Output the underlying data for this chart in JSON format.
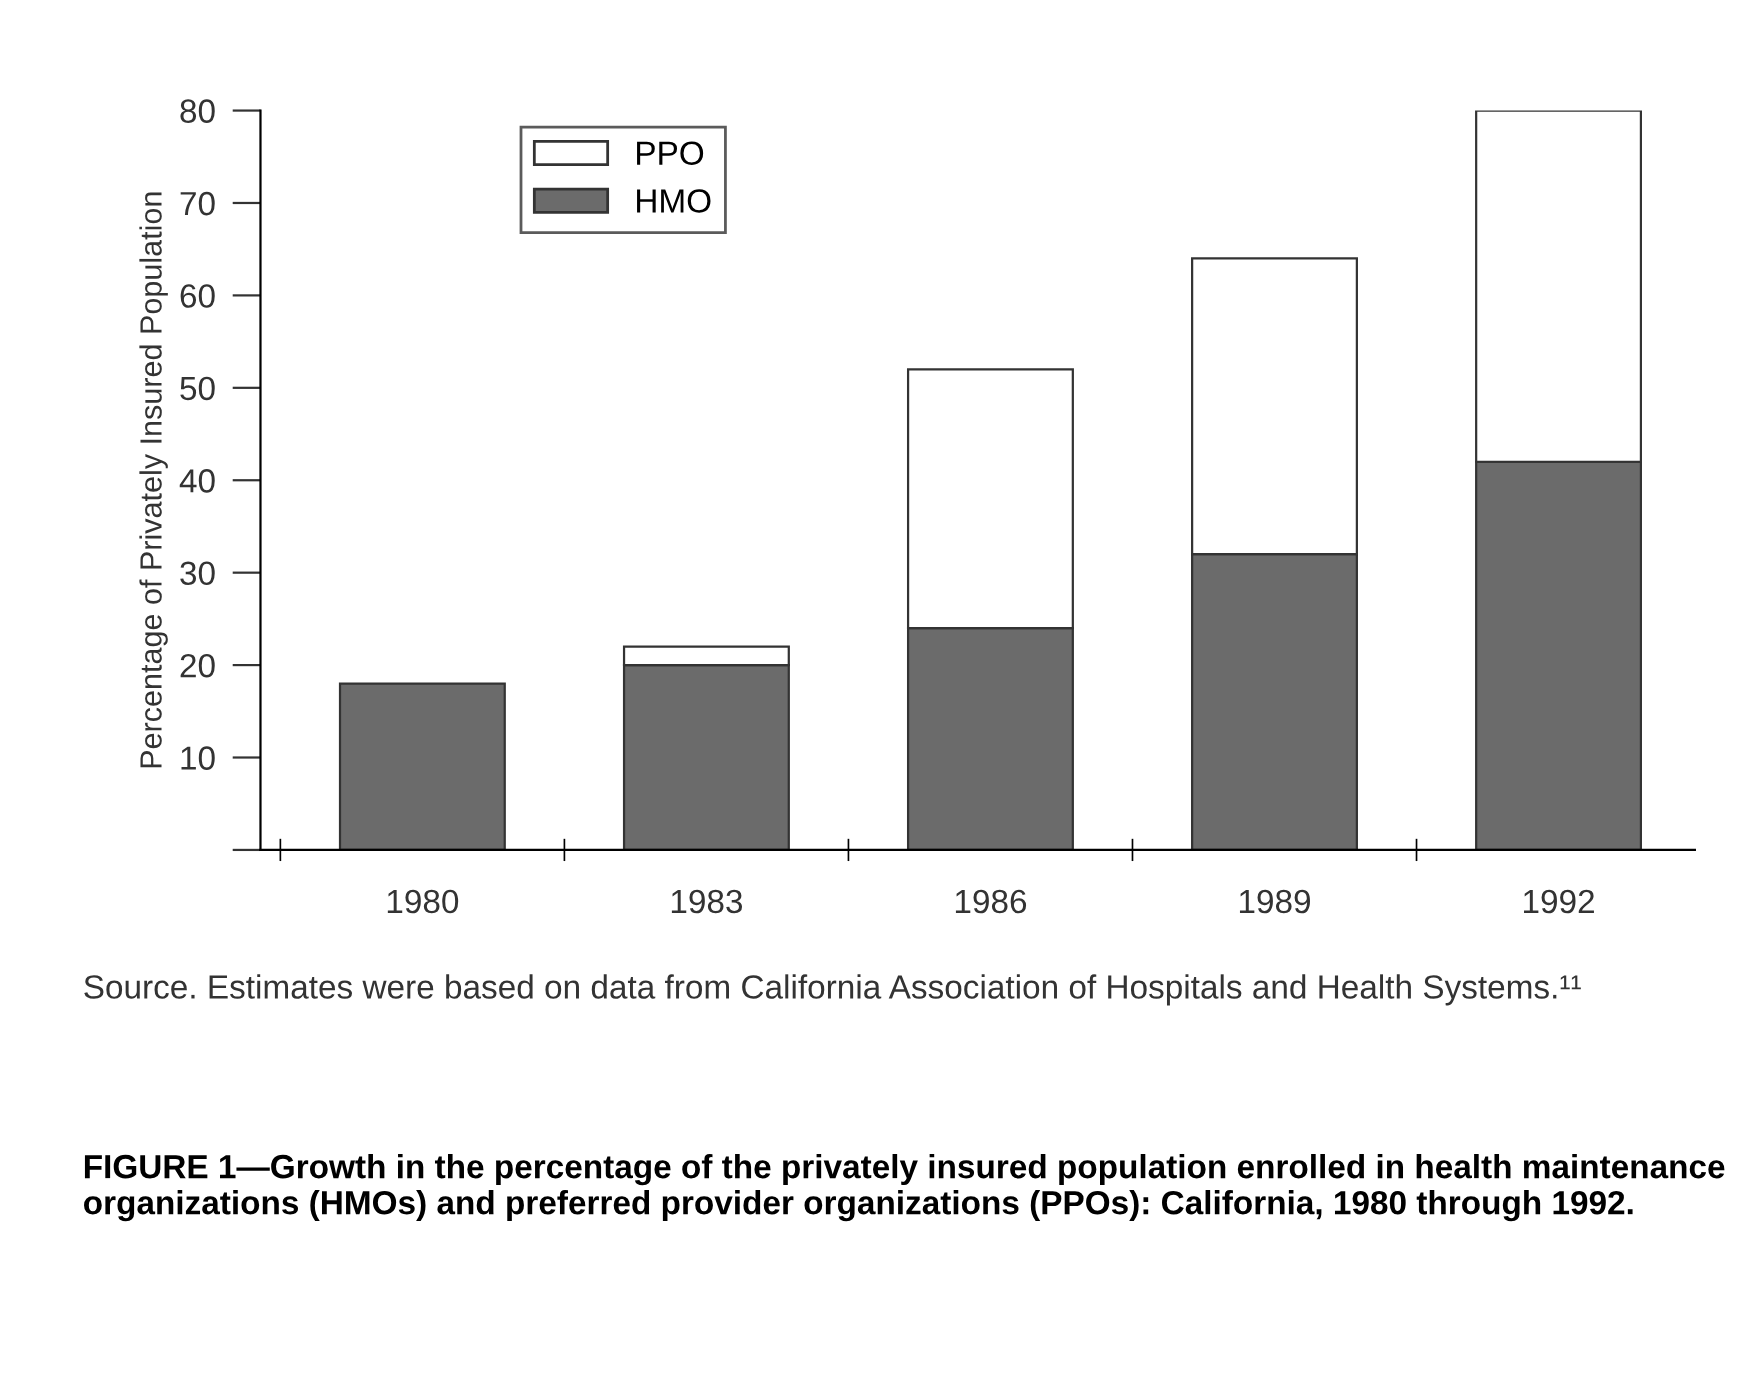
{
  "chart_data": {
    "type": "bar",
    "stacked": true,
    "title": "FIGURE 1—Growth in the percentage of the privately insured population enrolled in health maintenance organizations (HMOs) and preferred provider organizations (PPOs): California, 1980 through 1992.",
    "ylabel": "Percentage of Privately Insured Population",
    "categories": [
      "1980",
      "1983",
      "1986",
      "1989",
      "1992"
    ],
    "series": [
      {
        "name": "HMO",
        "color": "#6b6b6b",
        "values": [
          18,
          20,
          24,
          32,
          42
        ]
      },
      {
        "name": "PPO",
        "color": "#ffffff",
        "values": [
          null,
          2,
          28,
          32,
          38
        ]
      }
    ],
    "ylim": [
      0,
      80
    ],
    "yticks": [
      {
        "value": 0,
        "label": null
      },
      10,
      20,
      30,
      40,
      50,
      60,
      70,
      80
    ],
    "grid": false,
    "legend": "top left",
    "annotations": [
      "Source. Estimates were based on data from California Association of Hospitals and Health Systems.¹¹"
    ]
  }
}
